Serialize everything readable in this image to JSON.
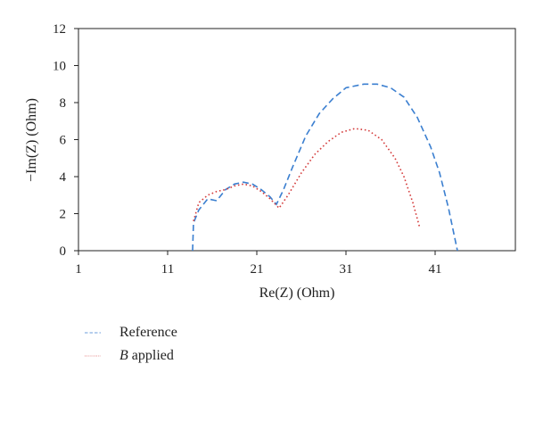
{
  "chart_data": {
    "type": "line",
    "xlabel": "Re(Z) (Ohm)",
    "ylabel": "−Im(Z) (Ohm)",
    "xlim": [
      1,
      50
    ],
    "ylim": [
      0,
      12
    ],
    "xticks": [
      1,
      11,
      21,
      31,
      41
    ],
    "yticks": [
      0,
      2,
      4,
      6,
      8,
      10,
      12
    ],
    "grid": false,
    "legend_position": "below-left",
    "series": [
      {
        "name": "Reference",
        "color": "#3b7fd0",
        "dash": "dashed",
        "x": [
          13.8,
          13.9,
          14.5,
          15.5,
          16.5,
          17.5,
          18.5,
          19.5,
          20.5,
          21.5,
          22.5,
          23.2,
          24.0,
          25.0,
          26.5,
          28.0,
          29.5,
          31.0,
          33.0,
          34.5,
          36.0,
          37.5,
          39.0,
          40.5,
          41.5,
          42.5,
          43.5
        ],
        "y": [
          0.0,
          1.5,
          2.2,
          2.8,
          2.7,
          3.3,
          3.6,
          3.7,
          3.6,
          3.3,
          2.9,
          2.5,
          3.3,
          4.5,
          6.2,
          7.4,
          8.2,
          8.8,
          9.0,
          9.0,
          8.8,
          8.3,
          7.2,
          5.6,
          4.2,
          2.3,
          0.0
        ]
      },
      {
        "name": "B applied",
        "name_parts": {
          "italic": "B",
          "rest": " applied"
        },
        "color": "#d43c3c",
        "dash": "dotted",
        "x": [
          13.9,
          14.5,
          15.5,
          16.5,
          17.5,
          18.5,
          19.5,
          20.5,
          21.5,
          22.5,
          23.5,
          24.5,
          26.0,
          27.5,
          29.0,
          30.5,
          32.0,
          33.5,
          35.0,
          36.5,
          37.5,
          38.5,
          39.3
        ],
        "y": [
          1.6,
          2.6,
          3.0,
          3.2,
          3.3,
          3.5,
          3.6,
          3.5,
          3.2,
          2.8,
          2.3,
          3.0,
          4.2,
          5.2,
          5.9,
          6.4,
          6.6,
          6.5,
          6.0,
          5.0,
          4.0,
          2.6,
          1.2
        ]
      }
    ]
  }
}
